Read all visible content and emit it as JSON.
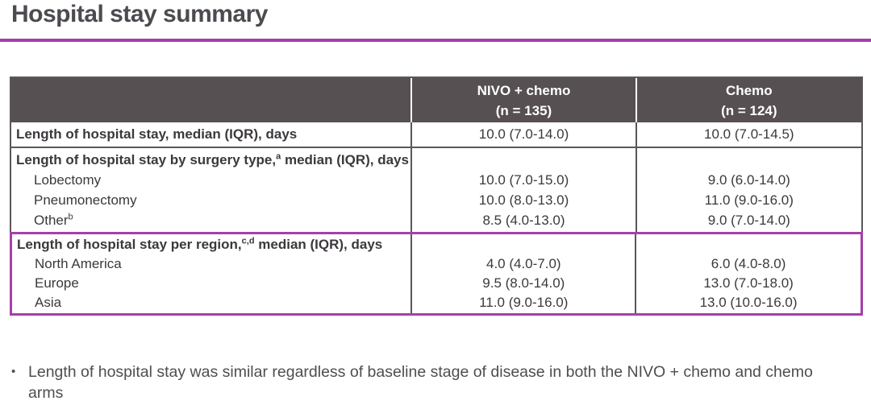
{
  "slide": {
    "title": "Hospital stay summary",
    "bullet_marker": "•",
    "bullet_text": "Length of hospital stay was similar regardless of baseline stage of disease in both the NIVO + chemo and chemo arms"
  },
  "colors": {
    "accent_purple": "#a63fa9",
    "header_bg": "#575053",
    "border_gray": "#5b565c",
    "text_dark": "#3c383d"
  },
  "table": {
    "header": {
      "col_nivo_line1": "NIVO + chemo",
      "col_nivo_line2": "(n = 135)",
      "col_chemo_line1": "Chemo",
      "col_chemo_line2": "(n = 124)"
    },
    "overall": {
      "label": "Length of hospital stay, median (IQR), days",
      "nivo": "10.0 (7.0-14.0)",
      "chemo": "10.0 (7.0-14.5)"
    },
    "surgery": {
      "label_pre": "Length of hospital stay by surgery type,",
      "label_sup": "a",
      "label_post": " median (IQR), days",
      "rows": [
        {
          "label": "Lobectomy",
          "label_sup": "",
          "nivo": "10.0 (7.0-15.0)",
          "chemo": "9.0 (6.0-14.0)"
        },
        {
          "label": "Pneumonectomy",
          "label_sup": "",
          "nivo": "10.0 (8.0-13.0)",
          "chemo": "11.0 (9.0-16.0)"
        },
        {
          "label": "Other",
          "label_sup": "b",
          "nivo": "8.5 (4.0-13.0)",
          "chemo": "9.0 (7.0-14.0)"
        }
      ]
    },
    "region": {
      "label_pre": "Length of hospital stay per region,",
      "label_sup": "c,d",
      "label_post": " median (IQR), days",
      "rows": [
        {
          "label": "North America",
          "label_sup": "",
          "nivo": "4.0 (4.0-7.0)",
          "chemo": "6.0 (4.0-8.0)"
        },
        {
          "label": "Europe",
          "label_sup": "",
          "nivo": "9.5 (8.0-14.0)",
          "chemo": "13.0 (7.0-18.0)"
        },
        {
          "label": "Asia",
          "label_sup": "",
          "nivo": "11.0 (9.0-16.0)",
          "chemo": "13.0 (10.0-16.0)"
        }
      ]
    }
  }
}
